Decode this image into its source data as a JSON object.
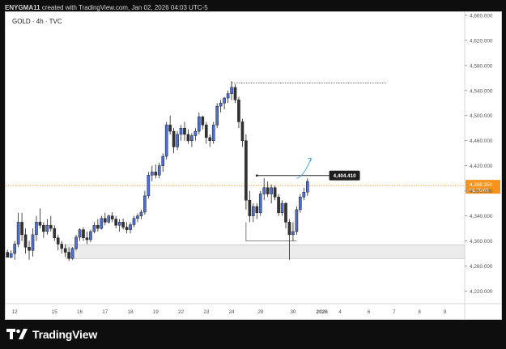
{
  "header": {
    "author": "ENYGMA11",
    "caption": "created with TradingView.com, Jan 02, 2026 04:03 UTC-5"
  },
  "legend": {
    "symbol_line": "GOLD · 4h · TVC"
  },
  "footer": {
    "brand": "TradingView",
    "logo_icon": "tradingview-logo-icon"
  },
  "colors": {
    "up": "#4c6ed6",
    "down": "#333333",
    "price_line": "#f0a020",
    "price_badge": "#f7931a",
    "annotation_badge": "#1e1e1e",
    "arrow": "#4aa8e8",
    "zone_fill": "#ececec"
  },
  "chart_data": {
    "type": "candlestick",
    "symbol": "GOLD",
    "interval": "4h",
    "source": "TVC",
    "ylim": [
      4200,
      4665
    ],
    "y_ticks": [
      4220,
      4260,
      4300,
      4340,
      4380,
      4420,
      4460,
      4500,
      4540,
      4580,
      4620,
      4660
    ],
    "y_tick_labels": [
      "4,220.000",
      "4,260.000",
      "4,300.000",
      "4,340.000",
      "4,380.000",
      "4,420.000",
      "4,460.000",
      "4,500.000",
      "4,540.000",
      "4,580.000",
      "4,620.000",
      "4,660.000"
    ],
    "x_tick_labels": [
      "12",
      "15",
      "16",
      "17",
      "18",
      "19",
      "22",
      "23",
      "24",
      "28",
      "30",
      "2026",
      "4",
      "6",
      "7",
      "8",
      "9"
    ],
    "x_tick_bars": [
      2,
      13,
      20,
      27,
      34,
      41,
      48,
      55,
      62,
      70,
      79,
      87,
      92,
      100,
      107,
      114,
      121
    ],
    "bar_count": 127,
    "candles": [
      [
        4282,
        4286,
        4276,
        4274
      ],
      [
        4274,
        4285,
        4272,
        4280
      ],
      [
        4280,
        4300,
        4270,
        4295
      ],
      [
        4295,
        4345,
        4290,
        4330
      ],
      [
        4330,
        4345,
        4300,
        4310
      ],
      [
        4310,
        4320,
        4280,
        4290
      ],
      [
        4290,
        4300,
        4270,
        4285
      ],
      [
        4285,
        4320,
        4275,
        4310
      ],
      [
        4310,
        4340,
        4300,
        4330
      ],
      [
        4330,
        4352,
        4320,
        4325
      ],
      [
        4325,
        4330,
        4305,
        4315
      ],
      [
        4315,
        4335,
        4310,
        4325
      ],
      [
        4325,
        4340,
        4315,
        4320
      ],
      [
        4320,
        4325,
        4300,
        4305
      ],
      [
        4305,
        4310,
        4285,
        4295
      ],
      [
        4295,
        4300,
        4280,
        4288
      ],
      [
        4288,
        4295,
        4275,
        4282
      ],
      [
        4282,
        4290,
        4268,
        4272
      ],
      [
        4272,
        4290,
        4270,
        4288
      ],
      [
        4288,
        4310,
        4285,
        4306
      ],
      [
        4306,
        4320,
        4300,
        4318
      ],
      [
        4318,
        4322,
        4300,
        4305
      ],
      [
        4305,
        4315,
        4295,
        4302
      ],
      [
        4302,
        4318,
        4298,
        4315
      ],
      [
        4315,
        4330,
        4312,
        4325
      ],
      [
        4325,
        4335,
        4315,
        4320
      ],
      [
        4320,
        4340,
        4318,
        4336
      ],
      [
        4336,
        4345,
        4325,
        4330
      ],
      [
        4330,
        4342,
        4328,
        4340
      ],
      [
        4340,
        4346,
        4330,
        4335
      ],
      [
        4335,
        4340,
        4320,
        4325
      ],
      [
        4325,
        4335,
        4315,
        4330
      ],
      [
        4330,
        4336,
        4318,
        4322
      ],
      [
        4322,
        4330,
        4312,
        4318
      ],
      [
        4318,
        4330,
        4312,
        4326
      ],
      [
        4326,
        4340,
        4322,
        4336
      ],
      [
        4336,
        4344,
        4330,
        4340
      ],
      [
        4340,
        4350,
        4335,
        4346
      ],
      [
        4346,
        4380,
        4342,
        4372
      ],
      [
        4372,
        4410,
        4368,
        4405
      ],
      [
        4405,
        4420,
        4395,
        4410
      ],
      [
        4410,
        4422,
        4400,
        4405
      ],
      [
        4405,
        4425,
        4400,
        4420
      ],
      [
        4420,
        4440,
        4410,
        4435
      ],
      [
        4435,
        4490,
        4430,
        4485
      ],
      [
        4485,
        4500,
        4470,
        4475
      ],
      [
        4475,
        4480,
        4440,
        4450
      ],
      [
        4450,
        4475,
        4445,
        4470
      ],
      [
        4470,
        4485,
        4460,
        4480
      ],
      [
        4480,
        4490,
        4460,
        4470
      ],
      [
        4470,
        4478,
        4455,
        4460
      ],
      [
        4460,
        4472,
        4450,
        4468
      ],
      [
        4468,
        4480,
        4460,
        4475
      ],
      [
        4475,
        4505,
        4470,
        4498
      ],
      [
        4498,
        4500,
        4478,
        4485
      ],
      [
        4485,
        4490,
        4455,
        4465
      ],
      [
        4465,
        4470,
        4450,
        4460
      ],
      [
        4460,
        4490,
        4455,
        4485
      ],
      [
        4485,
        4520,
        4480,
        4515
      ],
      [
        4515,
        4525,
        4505,
        4520
      ],
      [
        4520,
        4530,
        4510,
        4528
      ],
      [
        4528,
        4540,
        4520,
        4535
      ],
      [
        4535,
        4555,
        4525,
        4545
      ],
      [
        4545,
        4550,
        4520,
        4525
      ],
      [
        4525,
        4530,
        4480,
        4490
      ],
      [
        4490,
        4495,
        4450,
        4460
      ],
      [
        4460,
        4470,
        4350,
        4365
      ],
      [
        4365,
        4380,
        4330,
        4340
      ],
      [
        4340,
        4360,
        4330,
        4355
      ],
      [
        4355,
        4360,
        4335,
        4345
      ],
      [
        4345,
        4380,
        4340,
        4375
      ],
      [
        4375,
        4400,
        4365,
        4385
      ],
      [
        4385,
        4395,
        4370,
        4375
      ],
      [
        4375,
        4390,
        4360,
        4385
      ],
      [
        4385,
        4388,
        4365,
        4370
      ],
      [
        4370,
        4375,
        4340,
        4345
      ],
      [
        4345,
        4365,
        4340,
        4360
      ],
      [
        4360,
        4362,
        4320,
        4330
      ],
      [
        4330,
        4335,
        4270,
        4310
      ],
      [
        4310,
        4330,
        4300,
        4315
      ],
      [
        4315,
        4355,
        4310,
        4350
      ],
      [
        4350,
        4375,
        4345,
        4370
      ],
      [
        4370,
        4385,
        4365,
        4378
      ],
      [
        4378,
        4400,
        4372,
        4395
      ]
    ],
    "candle_start_bar": 0,
    "candle_bar_step": 1.0,
    "annotations": {
      "resistance_line": 4552,
      "support_zone": [
        4272,
        4294
      ],
      "target_price": 4404.41,
      "target_label": "4,404.410",
      "last_price_line": 4388.35,
      "last_price_label": "4,388.350",
      "countdown_label": "01:56:49"
    }
  }
}
